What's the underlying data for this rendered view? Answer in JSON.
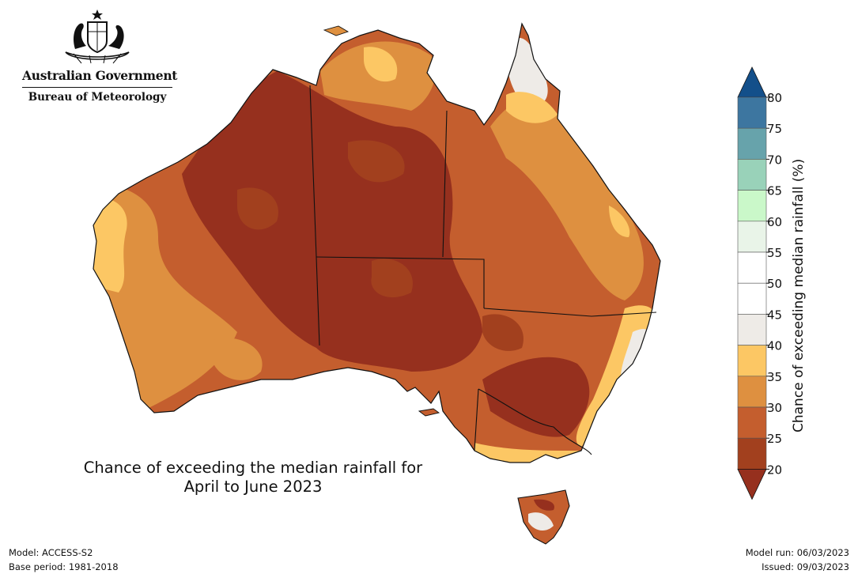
{
  "header": {
    "government": "Australian Government",
    "bureau": "Bureau of Meteorology",
    "emblem_icon": "coat-of-arms-icon"
  },
  "map": {
    "title_line1": "Chance of exceeding the median rainfall for",
    "title_line2": "April to June 2023",
    "colors": {
      "c20_25": "#a2401e",
      "c25_30": "#c45e2e",
      "c30_35": "#de9040",
      "c35_40": "#fcc764",
      "c15_20": "#96301e",
      "c40_45": "#eeebe7"
    }
  },
  "colorbar": {
    "title": "Chance of exceeding median rainfall (%)",
    "ticks": [
      "80",
      "75",
      "70",
      "65",
      "60",
      "55",
      "50",
      "45",
      "40",
      "35",
      "30",
      "25",
      "20"
    ],
    "band_colors": [
      "#3d76a0",
      "#67a3ab",
      "#99d2b9",
      "#caf8c9",
      "#e9f4e8",
      "#ffffff",
      "#ffffff",
      "#eeebe7",
      "#fcc764",
      "#de9040",
      "#c45e2e",
      "#a2401e"
    ],
    "top_arrow_color": "#134f8a",
    "bottom_arrow_color": "#96301e"
  },
  "footer": {
    "model": "Model: ACCESS-S2",
    "base_period": "Base period: 1981-2018",
    "model_run": "Model run: 06/03/2023",
    "issued": "Issued: 09/03/2023"
  }
}
